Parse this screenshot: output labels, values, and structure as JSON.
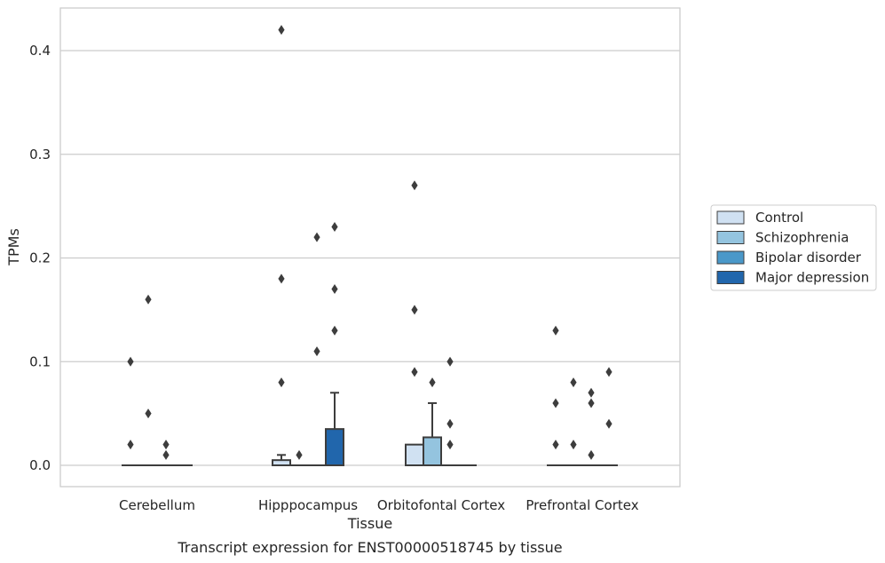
{
  "chart_data": {
    "type": "box",
    "title": "",
    "caption": "Transcript expression for ENST00000518745 by tissue",
    "xlabel": "Tissue",
    "ylabel": "TPMs",
    "ylim": [
      -0.02,
      0.44
    ],
    "yticks": [
      0.0,
      0.1,
      0.2,
      0.3,
      0.4
    ],
    "ytick_labels": [
      "0.0",
      "0.1",
      "0.2",
      "0.3",
      "0.4"
    ],
    "grid": "horizontal",
    "legend_position": "right",
    "categories": [
      "Cerebellum",
      "Hipppocampus",
      "Orbitofontal Cortex",
      "Prefrontal Cortex"
    ],
    "series": [
      {
        "name": "Control",
        "color": "#d0e1f2",
        "boxes": [
          {
            "q1": 0,
            "median": 0,
            "q3": 0,
            "whisker_low": 0,
            "whisker_high": 0,
            "outliers": [
              0.1,
              0.02
            ]
          },
          {
            "q1": 0,
            "median": 0,
            "q3": 0.005,
            "whisker_low": 0,
            "whisker_high": 0.01,
            "outliers": [
              0.42,
              0.18,
              0.08
            ]
          },
          {
            "q1": 0,
            "median": 0,
            "q3": 0.02,
            "whisker_low": 0,
            "whisker_high": 0.02,
            "outliers": [
              0.27,
              0.15,
              0.09
            ]
          },
          {
            "q1": 0,
            "median": 0,
            "q3": 0,
            "whisker_low": 0,
            "whisker_high": 0,
            "outliers": [
              0.13,
              0.06,
              0.02
            ]
          }
        ]
      },
      {
        "name": "Schizophrenia",
        "color": "#94c4df",
        "boxes": [
          {
            "q1": 0,
            "median": 0,
            "q3": 0,
            "whisker_low": 0,
            "whisker_high": 0,
            "outliers": [
              0.16,
              0.05
            ]
          },
          {
            "q1": 0,
            "median": 0,
            "q3": 0,
            "whisker_low": 0,
            "whisker_high": 0,
            "outliers": [
              0.01
            ]
          },
          {
            "q1": 0,
            "median": 0,
            "q3": 0.027,
            "whisker_low": 0,
            "whisker_high": 0.06,
            "outliers": [
              0.08
            ]
          },
          {
            "q1": 0,
            "median": 0,
            "q3": 0,
            "whisker_low": 0,
            "whisker_high": 0,
            "outliers": [
              0.08,
              0.02
            ]
          }
        ]
      },
      {
        "name": "Bipolar disorder",
        "color": "#4a98c9",
        "boxes": [
          {
            "q1": 0,
            "median": 0,
            "q3": 0,
            "whisker_low": 0,
            "whisker_high": 0,
            "outliers": [
              0.02,
              0.01
            ]
          },
          {
            "q1": 0,
            "median": 0,
            "q3": 0,
            "whisker_low": 0,
            "whisker_high": 0,
            "outliers": [
              0.22,
              0.11
            ]
          },
          {
            "q1": 0,
            "median": 0,
            "q3": 0,
            "whisker_low": 0,
            "whisker_high": 0,
            "outliers": [
              0.1,
              0.04,
              0.02
            ]
          },
          {
            "q1": 0,
            "median": 0,
            "q3": 0,
            "whisker_low": 0,
            "whisker_high": 0,
            "outliers": [
              0.07,
              0.06,
              0.01
            ]
          }
        ]
      },
      {
        "name": "Major depression",
        "color": "#2166ac",
        "boxes": [
          {
            "q1": 0,
            "median": 0,
            "q3": 0,
            "whisker_low": 0,
            "whisker_high": 0,
            "outliers": []
          },
          {
            "q1": 0,
            "median": 0,
            "q3": 0.035,
            "whisker_low": 0,
            "whisker_high": 0.07,
            "outliers": [
              0.23,
              0.17,
              0.13
            ]
          },
          {
            "q1": 0,
            "median": 0,
            "q3": 0,
            "whisker_low": 0,
            "whisker_high": 0,
            "outliers": []
          },
          {
            "q1": 0,
            "median": 0,
            "q3": 0,
            "whisker_low": 0,
            "whisker_high": 0,
            "outliers": [
              0.09,
              0.04
            ]
          }
        ]
      }
    ]
  },
  "colors": {
    "grid": "#cccccc",
    "frame": "#cccccc",
    "box_edge": "#3d3d3d",
    "outlier": "#3d3d3d"
  }
}
